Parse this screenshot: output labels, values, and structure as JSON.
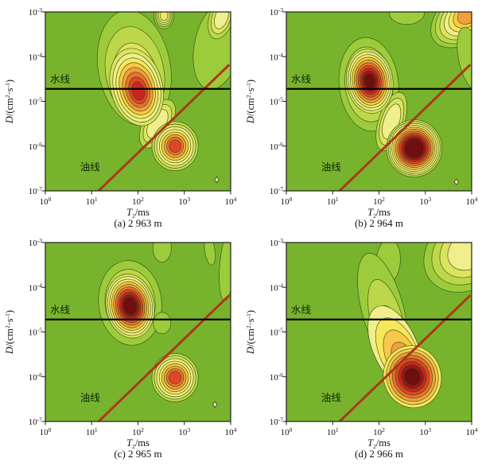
{
  "page": {
    "background": "#ffffff"
  },
  "colors": {
    "plot_background": "#78b32e",
    "contour_ramp": [
      "#9ccb3c",
      "#bcd84a",
      "#dbe45f",
      "#f0ee8d",
      "#f7e75b",
      "#f7c84a",
      "#f2a03b",
      "#ea732e",
      "#e14527",
      "#c9251f",
      "#a01315",
      "#700d10"
    ],
    "contour_stroke": "#2f4a12",
    "frame": "#1f1f1f",
    "tick_text": "#111111",
    "water_line": "#05050a",
    "oil_line": "#a93a15",
    "line_label": "#0f2408",
    "marker_fill": "#e9f0c6",
    "marker_stroke": "#27400e"
  },
  "axes": {
    "x": {
      "tick_exponents": [
        "0",
        "1",
        "2",
        "3",
        "4"
      ],
      "label_parts": [
        {
          "t": "T",
          "italic": true
        },
        {
          "t": "2",
          "sub": true
        },
        {
          "t": "/ms"
        }
      ]
    },
    "y": {
      "tick_exponents": [
        "-3",
        "-4",
        "-5",
        "-6",
        "-7"
      ],
      "label_parts": [
        {
          "t": "D",
          "italic": true
        },
        {
          "t": "/(cm"
        },
        {
          "t": "2",
          "sup": true
        },
        {
          "t": "·s"
        },
        {
          "t": "-1",
          "sup": true
        },
        {
          "t": ")"
        }
      ]
    }
  },
  "reference_lines": {
    "water": {
      "label": "水线",
      "logD": -4.72
    },
    "oil": {
      "label": "油线",
      "x1": 1.15,
      "y1": -7.0,
      "x2": 3.97,
      "y2": -4.18
    }
  },
  "chart_data": {
    "type": "heatmap",
    "description": "Four NMR D-T2 contour crossplots at successive depths; horizontal black line = water line (水线) at D≈2e-5 cm2/s, diagonal red line = oil line (油线) rising one decade in D per decade in T2 from (T2≈14 ms, D=1e-7).",
    "x_axis": {
      "label": "T2/ms",
      "scale": "log10",
      "range": [
        1,
        10000
      ],
      "ticks": [
        1,
        10,
        100,
        1000,
        10000
      ]
    },
    "y_axis": {
      "label": "D/(cm2·s-1)",
      "scale": "log10",
      "range": [
        1e-07,
        0.001
      ],
      "ticks": [
        0.001,
        0.0001,
        1e-05,
        1e-06,
        1e-07
      ]
    },
    "water_line_D_cm2s": 2e-05,
    "oil_line_points": [
      {
        "T2_ms": 14,
        "D": 1e-07
      },
      {
        "T2_ms": 9300,
        "D": 6.6e-05
      }
    ],
    "legend_position": "none",
    "grid": false,
    "panels": [
      {
        "caption": "(a) 2 963 m",
        "depth_m": 2963,
        "peaks": [
          {
            "name": "water signal",
            "T2_ms": 95,
            "D_cm2s": 2e-05,
            "relative_intensity": 0.85
          },
          {
            "name": "oil signal",
            "T2_ms": 630,
            "D_cm2s": 1e-06,
            "relative_intensity": 0.75
          }
        ],
        "blobs": [
          {
            "name": "right-upper-green",
            "cx": 3.72,
            "cy": -3.75,
            "rx": 0.5,
            "ry": 1.0,
            "rot": 12,
            "start": 0,
            "count": 1,
            "min": 0.55
          },
          {
            "name": "top-right-pale",
            "cx": 3.8,
            "cy": -3.12,
            "rx": 0.26,
            "ry": 0.5,
            "rot": 18,
            "start": 1,
            "count": 3,
            "min": 0.3
          },
          {
            "name": "top-small",
            "cx": 2.56,
            "cy": -3.08,
            "rx": 0.22,
            "ry": 0.3,
            "rot": 0,
            "start": 0,
            "count": 5,
            "min": 0.22
          },
          {
            "name": "water-plume",
            "cx": 1.92,
            "cy": -4.25,
            "rx": 0.78,
            "ry": 1.3,
            "rot": -10,
            "start": 0,
            "count": 3,
            "min": 0.42,
            "dx": 0.04,
            "dy": -0.35
          },
          {
            "name": "bridge",
            "cx": 2.42,
            "cy": -5.5,
            "rx": 0.3,
            "ry": 0.6,
            "rot": 30,
            "start": 1,
            "count": 3,
            "min": 0.38
          },
          {
            "name": "water-core",
            "cx": 1.97,
            "cy": -4.68,
            "rx": 0.56,
            "ry": 0.88,
            "rot": -14,
            "start": 2,
            "count": 8,
            "min": 0.13,
            "dx": 0.04,
            "dy": -0.1
          },
          {
            "name": "oil-core",
            "cx": 2.8,
            "cy": -6.0,
            "rx": 0.5,
            "ry": 0.55,
            "rot": 0,
            "start": 1,
            "count": 8,
            "min": 0.15
          }
        ],
        "markers": [
          {
            "shape": "diamond",
            "x": 3.7,
            "y": -6.75
          }
        ]
      },
      {
        "caption": "(b) 2 964 m",
        "depth_m": 2964,
        "peaks": [
          {
            "name": "water signal",
            "T2_ms": 60,
            "D_cm2s": 3e-05,
            "relative_intensity": 0.95
          },
          {
            "name": "oil signal",
            "T2_ms": 600,
            "D_cm2s": 9e-07,
            "relative_intensity": 1.0
          }
        ],
        "blobs": [
          {
            "name": "top-right-corner",
            "cx": 4.02,
            "cy": -2.98,
            "rx": 1.05,
            "ry": 0.6,
            "rot": -38,
            "start": 0,
            "count": 7,
            "min": 0.25
          },
          {
            "name": "right-streak",
            "cx": 3.98,
            "cy": -4.05,
            "rx": 0.26,
            "ry": 0.72,
            "rot": -12,
            "start": 0,
            "count": 1,
            "min": 0.5
          },
          {
            "name": "top-small",
            "cx": 2.6,
            "cy": -3.02,
            "rx": 0.38,
            "ry": 0.26,
            "rot": 0,
            "start": 0,
            "count": 1,
            "min": 0.5
          },
          {
            "name": "water-plume",
            "cx": 1.78,
            "cy": -4.62,
            "rx": 0.64,
            "ry": 1.05,
            "rot": -6,
            "start": 0,
            "count": 3,
            "min": 0.4
          },
          {
            "name": "bridge",
            "cx": 2.27,
            "cy": -5.45,
            "rx": 0.28,
            "ry": 0.68,
            "rot": 18,
            "start": 1,
            "count": 3,
            "min": 0.4
          },
          {
            "name": "water-core",
            "cx": 1.8,
            "cy": -4.55,
            "rx": 0.5,
            "ry": 0.72,
            "rot": -8,
            "start": 2,
            "count": 10,
            "min": 0.16
          },
          {
            "name": "oil-core",
            "cx": 2.76,
            "cy": -6.05,
            "rx": 0.6,
            "ry": 0.64,
            "rot": 0,
            "start": 1,
            "count": 11,
            "min": 0.28
          }
        ],
        "markers": [
          {
            "shape": "diamond",
            "x": 3.67,
            "y": -6.8
          }
        ]
      },
      {
        "caption": "(c) 2 965 m",
        "depth_m": 2965,
        "peaks": [
          {
            "name": "water signal",
            "T2_ms": 65,
            "D_cm2s": 4e-05,
            "relative_intensity": 1.0
          },
          {
            "name": "oil signal",
            "T2_ms": 600,
            "D_cm2s": 9e-07,
            "relative_intensity": 0.6
          }
        ],
        "blobs": [
          {
            "name": "top-plume",
            "cx": 2.52,
            "cy": -3.12,
            "rx": 0.2,
            "ry": 0.32,
            "rot": 0,
            "start": 0,
            "count": 1,
            "min": 0.5
          },
          {
            "name": "right-streak-tall",
            "cx": 3.92,
            "cy": -3.55,
            "rx": 0.16,
            "ry": 0.75,
            "rot": 4,
            "start": 0,
            "count": 1,
            "min": 0.5
          },
          {
            "name": "right-streak-small",
            "cx": 3.55,
            "cy": -3.18,
            "rx": 0.11,
            "ry": 0.33,
            "rot": -8,
            "start": 0,
            "count": 1,
            "min": 0.5
          },
          {
            "name": "water-plume",
            "cx": 1.83,
            "cy": -4.35,
            "rx": 0.68,
            "ry": 0.95,
            "rot": -6,
            "start": 0,
            "count": 3,
            "min": 0.38
          },
          {
            "name": "side-bump",
            "cx": 2.52,
            "cy": -4.8,
            "rx": 0.19,
            "ry": 0.24,
            "rot": 0,
            "start": 0,
            "count": 1,
            "min": 0.5
          },
          {
            "name": "water-core",
            "cx": 1.83,
            "cy": -4.42,
            "rx": 0.52,
            "ry": 0.72,
            "rot": -10,
            "start": 2,
            "count": 10,
            "min": 0.2
          },
          {
            "name": "oil-core",
            "cx": 2.8,
            "cy": -6.02,
            "rx": 0.5,
            "ry": 0.54,
            "rot": 0,
            "start": 1,
            "count": 8,
            "min": 0.16
          }
        ],
        "markers": [
          {
            "shape": "diamond",
            "x": 3.66,
            "y": -6.62
          }
        ]
      },
      {
        "caption": "(d) 2 966 m",
        "depth_m": 2966,
        "peaks": [
          {
            "name": "oil signal",
            "T2_ms": 520,
            "D_cm2s": 1e-06,
            "relative_intensity": 0.95
          },
          {
            "name": "short-T2 tail",
            "T2_ms": 110,
            "D_cm2s": 1e-05,
            "relative_intensity": 0.5
          }
        ],
        "blobs": [
          {
            "name": "top-right-corner",
            "cx": 3.98,
            "cy": -3.15,
            "rx": 1.1,
            "ry": 0.85,
            "rot": -36,
            "start": 0,
            "count": 4,
            "min": 0.32
          },
          {
            "name": "top-plume",
            "cx": 2.2,
            "cy": -3.42,
            "rx": 0.26,
            "ry": 0.5,
            "rot": 4,
            "start": 0,
            "count": 1,
            "min": 0.5
          },
          {
            "name": "tail",
            "cx": 2.08,
            "cy": -4.5,
            "rx": 0.45,
            "ry": 1.3,
            "rot": -15,
            "start": 0,
            "count": 3,
            "min": 0.32,
            "dx": 0.3,
            "dy": -0.9
          },
          {
            "name": "mid",
            "cx": 2.35,
            "cy": -5.35,
            "rx": 0.48,
            "ry": 1.0,
            "rot": -24,
            "start": 3,
            "count": 4,
            "min": 0.38,
            "dx": 0.3,
            "dy": -0.5
          },
          {
            "name": "oil-core",
            "cx": 2.72,
            "cy": -6.0,
            "rx": 0.62,
            "ry": 0.7,
            "rot": -18,
            "start": 4,
            "count": 8,
            "min": 0.18
          }
        ],
        "markers": []
      }
    ]
  }
}
